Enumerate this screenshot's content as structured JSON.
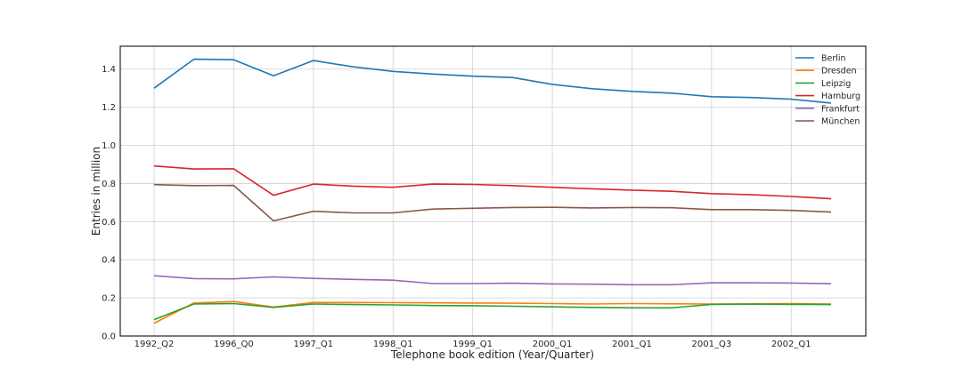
{
  "chart_data": {
    "type": "line",
    "title": "",
    "xlabel": "Telephone book edition (Year/Quarter)",
    "ylabel": "Entries in million",
    "ylim": [
      0.0,
      1.52
    ],
    "y_ticks": [
      "0.0",
      "0.2",
      "0.4",
      "0.6",
      "0.8",
      "1.0",
      "1.2",
      "1.4"
    ],
    "x_tick_labels": [
      "1992_Q2",
      "1996_Q0",
      "1997_Q1",
      "1998_Q1",
      "1999_Q1",
      "2000_Q1",
      "2001_Q1",
      "2001_Q3",
      "2002_Q1"
    ],
    "grid": true,
    "legend_position": "top-right",
    "series": [
      {
        "name": "Berlin",
        "color": "#1f77b4",
        "values": [
          1.3,
          1.452,
          1.449,
          1.365,
          1.445,
          1.412,
          1.388,
          1.374,
          1.363,
          1.356,
          1.32,
          1.297,
          1.283,
          1.274,
          1.255,
          1.251,
          1.242,
          1.222
        ]
      },
      {
        "name": "Dresden",
        "color": "#ff7f0e",
        "values": [
          0.067,
          0.173,
          0.181,
          0.152,
          0.176,
          0.176,
          0.175,
          0.174,
          0.173,
          0.172,
          0.17,
          0.168,
          0.17,
          0.169,
          0.168,
          0.169,
          0.17,
          0.168
        ]
      },
      {
        "name": "Leipzig",
        "color": "#2ca02c",
        "values": [
          0.086,
          0.168,
          0.17,
          0.15,
          0.168,
          0.165,
          0.163,
          0.16,
          0.159,
          0.156,
          0.153,
          0.15,
          0.148,
          0.148,
          0.166,
          0.167,
          0.166,
          0.165
        ]
      },
      {
        "name": "Hamburg",
        "color": "#d62728",
        "values": [
          0.892,
          0.876,
          0.877,
          0.738,
          0.797,
          0.786,
          0.78,
          0.797,
          0.795,
          0.789,
          0.78,
          0.772,
          0.765,
          0.759,
          0.747,
          0.741,
          0.732,
          0.72
        ]
      },
      {
        "name": "Frankfurt",
        "color": "#9467bd",
        "values": [
          0.316,
          0.301,
          0.3,
          0.31,
          0.302,
          0.297,
          0.293,
          0.275,
          0.275,
          0.277,
          0.273,
          0.272,
          0.269,
          0.269,
          0.279,
          0.279,
          0.278,
          0.274
        ]
      },
      {
        "name": "München",
        "color": "#8c564b",
        "values": [
          0.794,
          0.789,
          0.79,
          0.604,
          0.654,
          0.646,
          0.646,
          0.666,
          0.67,
          0.674,
          0.675,
          0.672,
          0.674,
          0.673,
          0.663,
          0.663,
          0.659,
          0.65
        ]
      }
    ]
  }
}
